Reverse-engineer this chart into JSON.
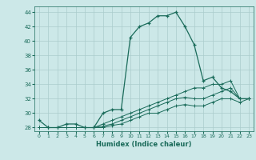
{
  "xlabel": "Humidex (Indice chaleur)",
  "bg_color": "#cce8e8",
  "grid_color": "#aacccc",
  "line_color": "#1a6b5a",
  "xlim": [
    -0.5,
    23.5
  ],
  "ylim": [
    27.5,
    44.8
  ],
  "yticks": [
    28,
    30,
    32,
    34,
    36,
    38,
    40,
    42,
    44
  ],
  "xticks": [
    0,
    1,
    2,
    3,
    4,
    5,
    6,
    7,
    8,
    9,
    10,
    11,
    12,
    13,
    14,
    15,
    16,
    17,
    18,
    19,
    20,
    21,
    22,
    23
  ],
  "line1_x": [
    0,
    1,
    2,
    3,
    4,
    5,
    6,
    7,
    8,
    9,
    10,
    11,
    12,
    13,
    14,
    15,
    16,
    17,
    18,
    19,
    20,
    21,
    22,
    23
  ],
  "line1_y": [
    29,
    28,
    28,
    28.5,
    28.5,
    28,
    28,
    30,
    30.5,
    30.5,
    40.5,
    42,
    42.5,
    43.5,
    43.5,
    44,
    42,
    39.5,
    34.5,
    35,
    33.5,
    33,
    32,
    32
  ],
  "line2_x": [
    0,
    1,
    2,
    3,
    4,
    5,
    6,
    7,
    8,
    9,
    10,
    11,
    12,
    13,
    14,
    15,
    16,
    17,
    18,
    19,
    20,
    21,
    22,
    23
  ],
  "line2_y": [
    28,
    28,
    28,
    28,
    28,
    28,
    28,
    28.5,
    29,
    29.5,
    30,
    30.5,
    31,
    31.5,
    32,
    32.5,
    33,
    33.5,
    33.5,
    34,
    34,
    34.5,
    32,
    32
  ],
  "line3_x": [
    0,
    1,
    2,
    3,
    4,
    5,
    6,
    7,
    8,
    9,
    10,
    11,
    12,
    13,
    14,
    15,
    16,
    17,
    18,
    19,
    20,
    21,
    22,
    23
  ],
  "line3_y": [
    28,
    28,
    28,
    28,
    28,
    28,
    28,
    28.2,
    28.5,
    29,
    29.5,
    30,
    30.5,
    31,
    31.5,
    32,
    32.2,
    32,
    32,
    32.5,
    33,
    33.5,
    32,
    32
  ],
  "line4_x": [
    0,
    1,
    2,
    3,
    4,
    5,
    6,
    7,
    8,
    9,
    10,
    11,
    12,
    13,
    14,
    15,
    16,
    17,
    18,
    19,
    20,
    21,
    22,
    23
  ],
  "line4_y": [
    28,
    28,
    28,
    28,
    28,
    28,
    28,
    28,
    28.3,
    28.5,
    29,
    29.5,
    30,
    30,
    30.5,
    31,
    31.2,
    31,
    31,
    31.5,
    32,
    32,
    31.5,
    32
  ]
}
